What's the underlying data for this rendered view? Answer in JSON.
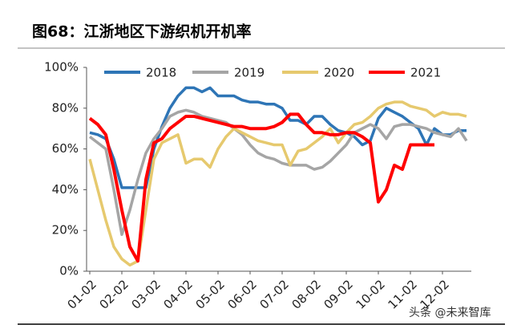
{
  "chart_data": {
    "type": "line",
    "title": "图68：江浙地区下游织机开机率",
    "watermark": "头条 @未来智库",
    "categories": [
      "01-02",
      null,
      null,
      null,
      "02-02",
      null,
      null,
      null,
      "03-02",
      null,
      null,
      null,
      "04-02",
      null,
      null,
      null,
      "05-02",
      null,
      null,
      null,
      "06-02",
      null,
      null,
      null,
      "07-02",
      null,
      null,
      null,
      "08-02",
      null,
      null,
      null,
      "09-02",
      null,
      null,
      null,
      "10-02",
      null,
      null,
      null,
      "11-02",
      null,
      null,
      null,
      "12-02",
      null,
      null,
      null
    ],
    "series": [
      {
        "name": "2018",
        "color": "#2e75b6",
        "values": [
          68,
          67,
          65,
          55,
          41,
          41,
          41,
          41,
          60,
          71,
          80,
          86,
          90,
          90,
          88,
          90,
          86,
          86,
          86,
          84,
          83,
          83,
          82,
          82,
          80,
          74,
          74,
          72,
          76,
          76,
          72,
          69,
          68,
          66,
          62,
          64,
          75,
          80,
          78,
          76,
          73,
          70,
          62,
          70,
          67,
          67,
          69,
          69
        ]
      },
      {
        "name": "2019",
        "color": "#a5a5a5",
        "values": [
          66,
          63,
          60,
          40,
          18,
          30,
          45,
          58,
          65,
          70,
          76,
          78,
          79,
          78,
          76,
          75,
          74,
          73,
          70,
          67,
          62,
          58,
          56,
          55,
          53,
          52,
          52,
          52,
          50,
          51,
          54,
          58,
          62,
          68,
          70,
          72,
          70,
          65,
          71,
          72,
          72,
          71,
          70,
          68,
          67,
          66,
          70,
          64
        ]
      },
      {
        "name": "2020",
        "color": "#e6c96e",
        "values": [
          55,
          40,
          25,
          12,
          6,
          3,
          5,
          30,
          55,
          63,
          65,
          67,
          53,
          55,
          55,
          51,
          60,
          66,
          70,
          68,
          66,
          64,
          63,
          62,
          62,
          52,
          59,
          60,
          63,
          66,
          70,
          63,
          68,
          72,
          73,
          76,
          80,
          82,
          83,
          83,
          81,
          80,
          79,
          76,
          78,
          77,
          77,
          76
        ]
      },
      {
        "name": "2021",
        "color": "#ff0000",
        "values": [
          75,
          72,
          67,
          50,
          30,
          12,
          5,
          45,
          63,
          65,
          70,
          73,
          76,
          76,
          75,
          74,
          73,
          72,
          71,
          71,
          70,
          70,
          70,
          71,
          73,
          77,
          77,
          72,
          68,
          68,
          67,
          67,
          68,
          68,
          66,
          63,
          34,
          40,
          52,
          50,
          62,
          62,
          62,
          62,
          null,
          null,
          null,
          null
        ]
      }
    ],
    "ylim": [
      0,
      100
    ],
    "yticks": [
      {
        "value": 0,
        "label": "0%"
      },
      {
        "value": 20,
        "label": "20%"
      },
      {
        "value": 40,
        "label": "40%"
      },
      {
        "value": 60,
        "label": "60%"
      },
      {
        "value": 80,
        "label": "80%"
      },
      {
        "value": 100,
        "label": "100%"
      }
    ],
    "grid": false,
    "legend": "top"
  }
}
